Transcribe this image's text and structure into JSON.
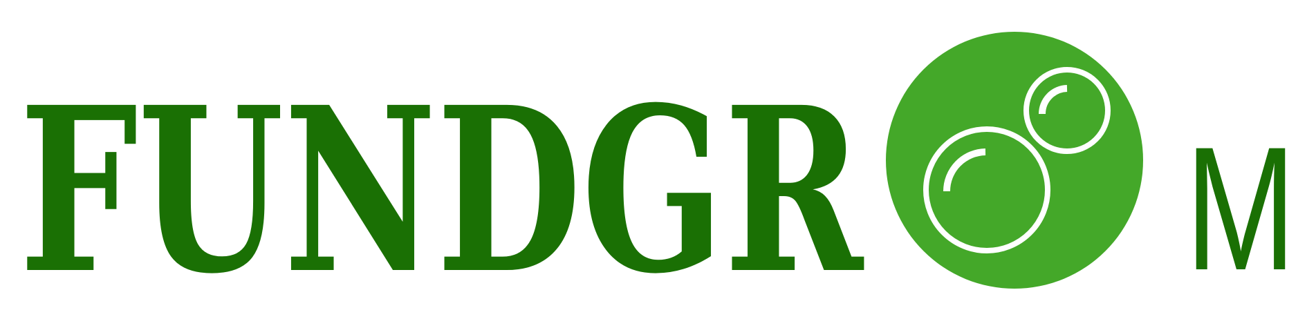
{
  "logo": {
    "lettering": "FUNDGROOM",
    "text_before_circle": "FUNDGR",
    "text_after_circle": "M",
    "colors": {
      "text": "#1a7004",
      "circle": "#44a829",
      "bubble_ring": "#ffffff"
    }
  }
}
